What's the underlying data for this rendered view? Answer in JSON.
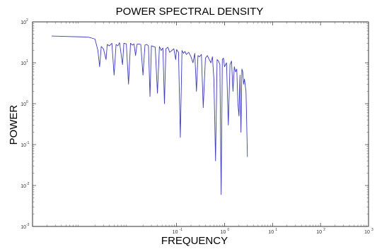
{
  "chart_data": {
    "type": "line",
    "title": "POWER SPECTRAL DENSITY",
    "xlabel": "FREQUENCY",
    "ylabel": "POWER",
    "x_scale": "log",
    "y_scale": "log",
    "xlim": [
      0.0001,
      1000
    ],
    "ylim": [
      0.001,
      100
    ],
    "x_ticks": [
      {
        "base": "10",
        "exp": "-1"
      },
      {
        "base": "10",
        "exp": "0"
      },
      {
        "base": "10",
        "exp": "1"
      },
      {
        "base": "10",
        "exp": "2"
      },
      {
        "base": "10",
        "exp": "3"
      }
    ],
    "y_ticks": [
      {
        "base": "10",
        "exp": "-3"
      },
      {
        "base": "10",
        "exp": "-2"
      },
      {
        "base": "10",
        "exp": "-1"
      },
      {
        "base": "10",
        "exp": "0"
      },
      {
        "base": "10",
        "exp": "1"
      },
      {
        "base": "10",
        "exp": "2"
      }
    ],
    "grid": false,
    "line_color": "#3a3ad0",
    "series": [
      {
        "x": [
          0.00025,
          0.0005,
          0.001,
          0.0015,
          0.002,
          0.0023,
          0.0025,
          0.0027,
          0.003,
          0.0034,
          0.0036,
          0.004,
          0.0045,
          0.005,
          0.0055,
          0.006,
          0.0065,
          0.0075,
          0.008,
          0.009,
          0.01,
          0.011,
          0.012,
          0.013,
          0.014,
          0.015,
          0.016,
          0.018,
          0.02,
          0.022,
          0.024,
          0.026,
          0.028,
          0.03,
          0.033,
          0.036,
          0.04,
          0.044,
          0.048,
          0.052,
          0.056,
          0.06,
          0.066,
          0.072,
          0.08,
          0.088,
          0.096,
          0.1,
          0.11,
          0.12,
          0.13,
          0.14,
          0.15,
          0.16,
          0.18,
          0.2,
          0.22,
          0.24,
          0.26,
          0.28,
          0.3,
          0.33,
          0.36,
          0.4,
          0.44,
          0.48,
          0.52,
          0.56,
          0.6,
          0.65,
          0.7,
          0.75,
          0.8,
          0.85,
          0.9,
          0.95,
          1.0,
          1.1,
          1.2,
          1.3,
          1.4,
          1.5,
          1.6,
          1.7,
          1.8,
          1.9,
          2.0,
          2.1,
          2.2,
          2.3,
          2.4,
          2.5,
          2.6,
          2.8,
          3.0
        ],
        "y": [
          45,
          44,
          43,
          42,
          38,
          20,
          8,
          25,
          22,
          12,
          28,
          26,
          30,
          5,
          28,
          26,
          31,
          9,
          30,
          29,
          3,
          30,
          27,
          29,
          15,
          28,
          29,
          28,
          5,
          27,
          28,
          26,
          1.5,
          26,
          25,
          24,
          1.8,
          25,
          20,
          23,
          1,
          22,
          24,
          18,
          20,
          22,
          12,
          21,
          18,
          0.15,
          20,
          17,
          19,
          16,
          18,
          14,
          10,
          17,
          2,
          15,
          14,
          16,
          0.8,
          13,
          15,
          12,
          10,
          14,
          4,
          0.04,
          12,
          11,
          9,
          0.006,
          12,
          13,
          8,
          10,
          0.3,
          9,
          11,
          2,
          8,
          6,
          7,
          1,
          0.5,
          5,
          0.2,
          7,
          6,
          3,
          4,
          2,
          0.05
        ]
      }
    ]
  }
}
